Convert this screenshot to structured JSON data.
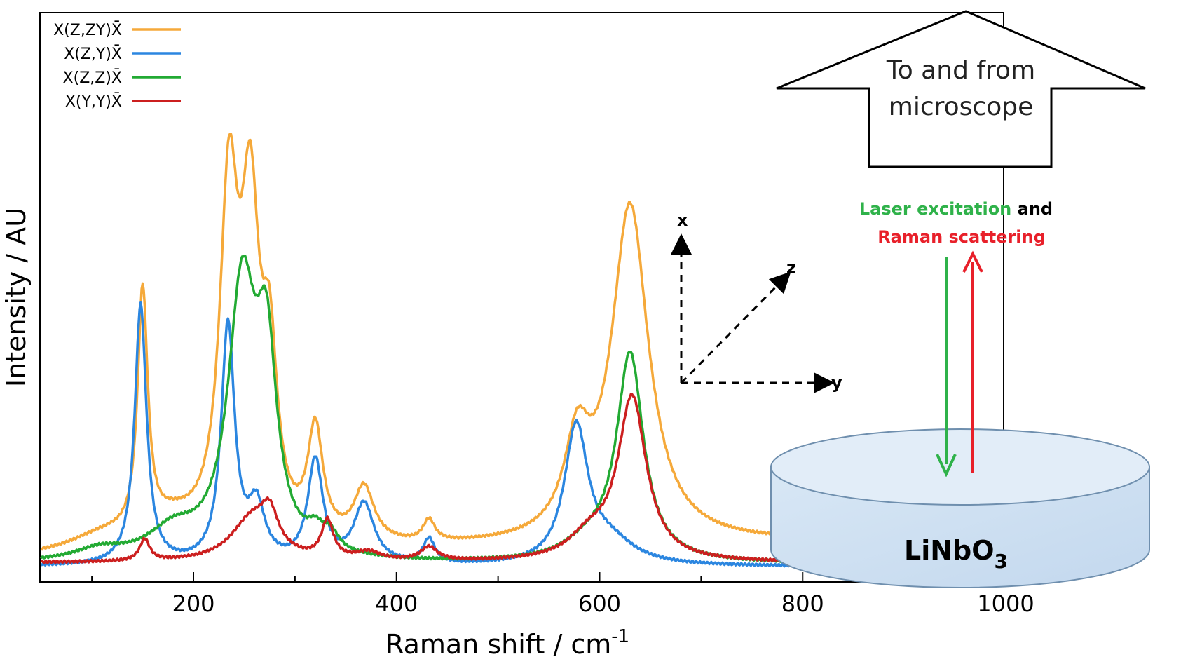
{
  "chart_data": {
    "type": "line",
    "xlabel": "Raman shift / cm",
    "xlabel_superscript": "-1",
    "ylabel": "Intensity / AU",
    "xlim": [
      50,
      1000
    ],
    "ylim": [
      0,
      1
    ],
    "xticks": [
      "200",
      "400",
      "600",
      "800",
      "1000"
    ],
    "xtick_values": [
      200,
      400,
      600,
      800,
      1000
    ],
    "legend_position": "top-left",
    "grid": false,
    "series": [
      {
        "name": "X(Z,ZY)X̄",
        "color": "#f5a93a",
        "baseline": 0.02,
        "slope": 4e-05,
        "peaks": [
          [
            150,
            0.45,
            6
          ],
          [
            235,
            0.62,
            11
          ],
          [
            256,
            0.56,
            11
          ],
          [
            275,
            0.29,
            9
          ],
          [
            320,
            0.2,
            9
          ],
          [
            368,
            0.1,
            12
          ],
          [
            432,
            0.04,
            7
          ],
          [
            578,
            0.16,
            15
          ],
          [
            630,
            0.62,
            22
          ],
          [
            180,
            0.04,
            30
          ],
          [
            110,
            0.03,
            40
          ]
        ]
      },
      {
        "name": "X(Z,Y)X̄",
        "color": "#2b86e0",
        "baseline": 0.005,
        "slope": 0.0,
        "peaks": [
          [
            148,
            0.48,
            7
          ],
          [
            234,
            0.44,
            8
          ],
          [
            262,
            0.1,
            10
          ],
          [
            320,
            0.19,
            9
          ],
          [
            368,
            0.11,
            12
          ],
          [
            432,
            0.045,
            7
          ],
          [
            577,
            0.25,
            14
          ],
          [
            610,
            0.04,
            30
          ]
        ]
      },
      {
        "name": "X(Z,Z)X̄",
        "color": "#22aa33",
        "baseline": 0.01,
        "slope": 0.0,
        "peaks": [
          [
            108,
            0.02,
            30
          ],
          [
            180,
            0.05,
            30
          ],
          [
            248,
            0.49,
            17
          ],
          [
            272,
            0.33,
            12
          ],
          [
            320,
            0.03,
            10
          ],
          [
            335,
            0.03,
            10
          ],
          [
            630,
            0.38,
            16
          ],
          [
            590,
            0.03,
            30
          ]
        ]
      },
      {
        "name": "X(Y,Y)X̄",
        "color": "#cc1f1f",
        "baseline": 0.012,
        "slope": 0.0,
        "peaks": [
          [
            152,
            0.04,
            6
          ],
          [
            258,
            0.08,
            25
          ],
          [
            275,
            0.06,
            10
          ],
          [
            332,
            0.07,
            7
          ],
          [
            372,
            0.015,
            15
          ],
          [
            432,
            0.025,
            10
          ],
          [
            590,
            0.04,
            25
          ],
          [
            632,
            0.3,
            17
          ]
        ]
      }
    ]
  },
  "inset": {
    "arrow_text_line1": "To and from",
    "arrow_text_line2": "microscope",
    "note_green": "Laser excitation",
    "note_and": " and",
    "note_red": "Raman scattering",
    "axis_x": "x",
    "axis_y": "y",
    "axis_z": "z",
    "crystal_main": "LiNbO",
    "crystal_sub": "3"
  }
}
